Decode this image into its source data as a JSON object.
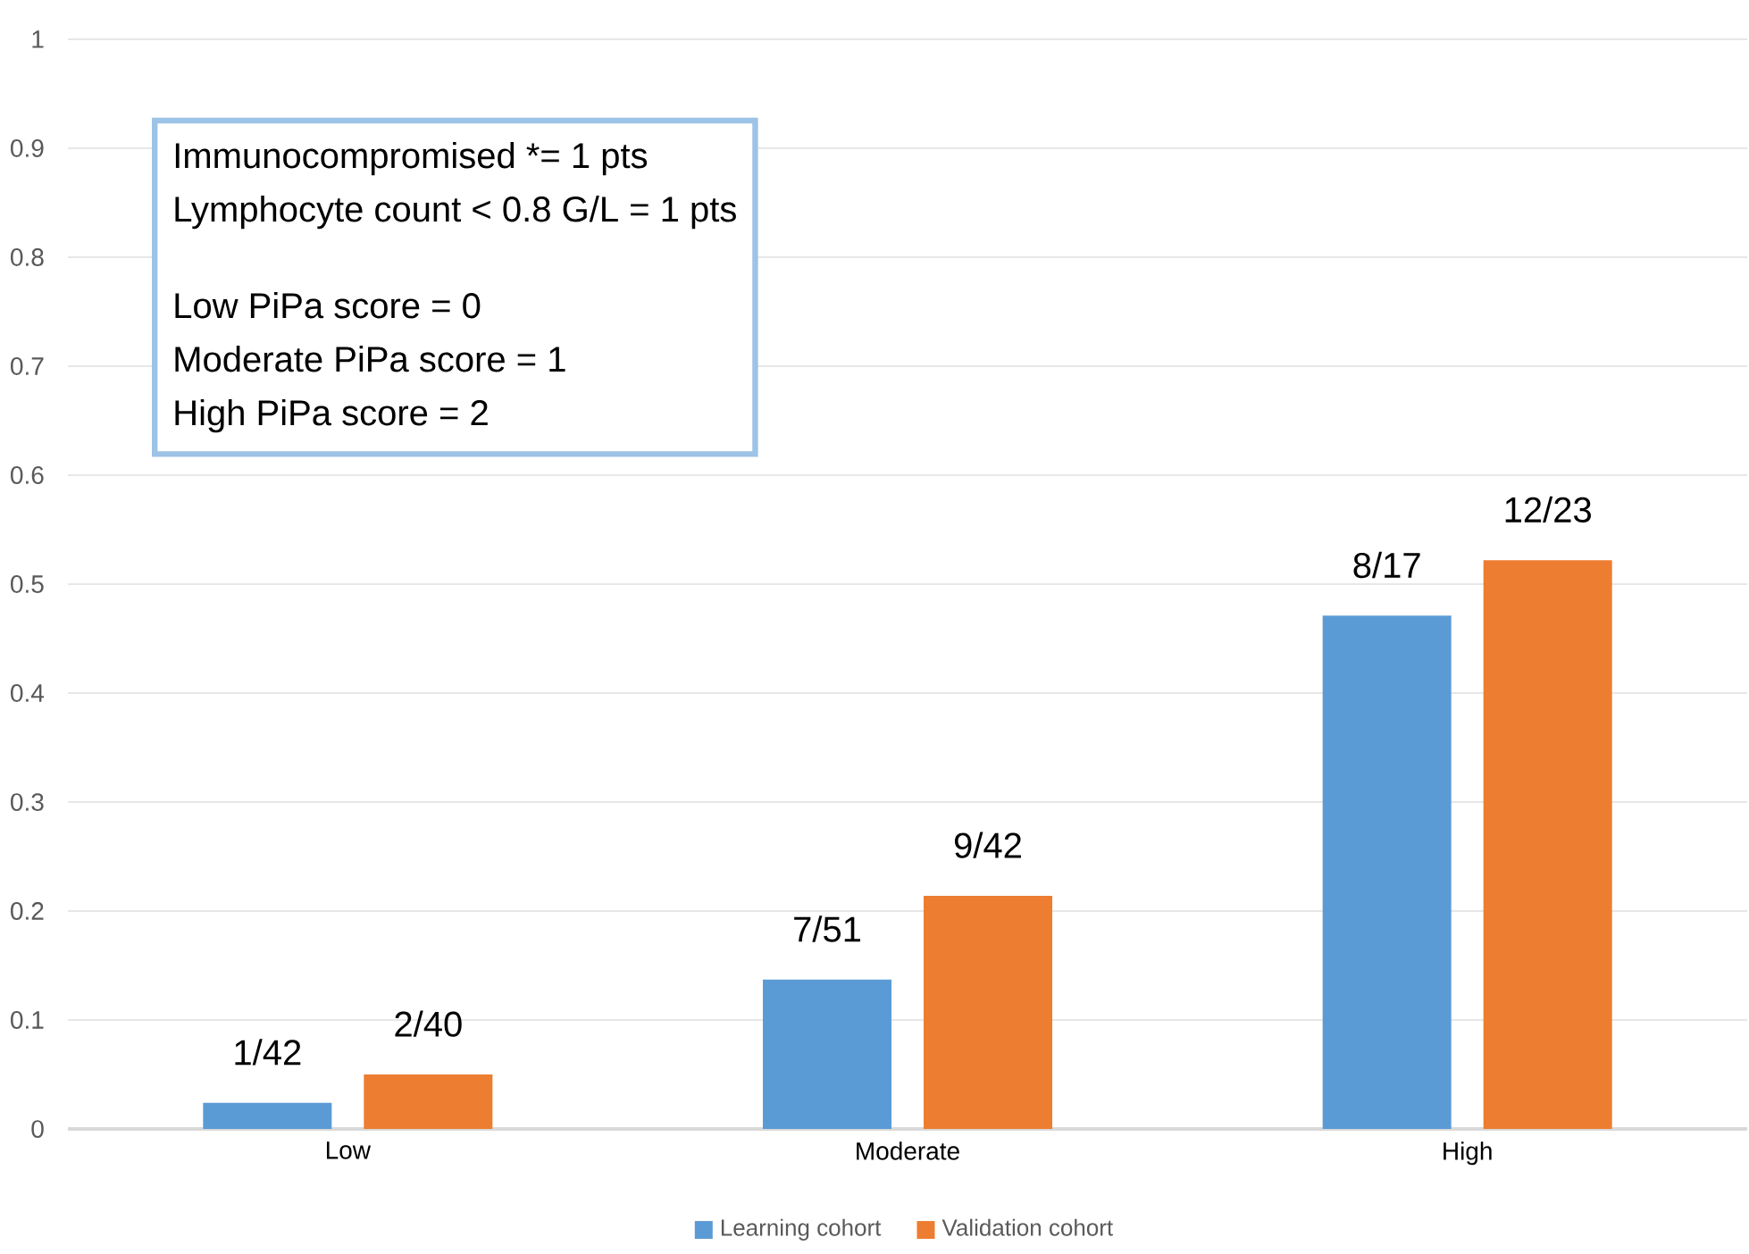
{
  "chart_data": {
    "type": "bar",
    "categories": [
      "Low",
      "Moderate",
      "High"
    ],
    "series": [
      {
        "name": "Learning cohort",
        "color": "#5b9bd5",
        "values": [
          0.024,
          0.137,
          0.471
        ],
        "value_labels": [
          "1/42",
          "7/51",
          "8/17"
        ]
      },
      {
        "name": "Validation cohort",
        "color": "#ed7d31",
        "values": [
          0.05,
          0.214,
          0.522
        ],
        "value_labels": [
          "2/40",
          "9/42",
          "12/23"
        ]
      }
    ],
    "ylim": [
      0,
      1
    ],
    "yticks": [
      0,
      0.1,
      0.2,
      0.3,
      0.4,
      0.5,
      0.6,
      0.7,
      0.8,
      0.9,
      1
    ],
    "grid": "y",
    "legend": "bottom",
    "annotations": [
      "Immunocompromised *= 1 pts",
      "Lymphocyte count < 0.8 G/L = 1 pts",
      "Low PiPa score = 0",
      "Moderate PiPa score = 1",
      "High PiPa score = 2"
    ]
  }
}
